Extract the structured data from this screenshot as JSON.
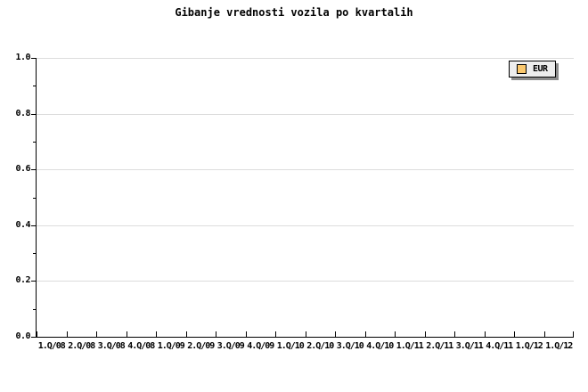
{
  "chart_data": {
    "type": "line",
    "title": "Gibanje vrednosti vozila po kvartalih",
    "categories": [
      "1.Q/08",
      "2.Q/08",
      "3.Q/08",
      "4.Q/08",
      "1.Q/09",
      "2.Q/09",
      "3.Q/09",
      "4.Q/09",
      "1.Q/10",
      "2.Q/10",
      "3.Q/10",
      "4.Q/10",
      "1.Q/11",
      "2.Q/11",
      "3.Q/11",
      "4.Q/11",
      "1.Q/12",
      "1.Q/12"
    ],
    "series": [
      {
        "name": "EUR",
        "color": "#FAC86E",
        "values": []
      }
    ],
    "xlabel": "",
    "ylabel": "",
    "ylim": [
      0.0,
      1.0
    ],
    "y_major_ticks": [
      0.0,
      0.2,
      0.4,
      0.6,
      0.8,
      1.0
    ],
    "y_minor_ticks": [
      0.1,
      0.3,
      0.5,
      0.7,
      0.9
    ],
    "grid": "horizontal major gridlines only",
    "legend_position": "top-right",
    "plot_empty": true
  },
  "legend": {
    "label": "EUR"
  },
  "colors": {
    "background": "#FFFFFF",
    "text": "#000000",
    "axis": "#000000",
    "gridline": "#DCDCDC",
    "legend_background": "#EDEDED",
    "legend_border": "#000000",
    "legend_shadow": "#8C8C8C",
    "series_swatch": "#FAC86E"
  }
}
